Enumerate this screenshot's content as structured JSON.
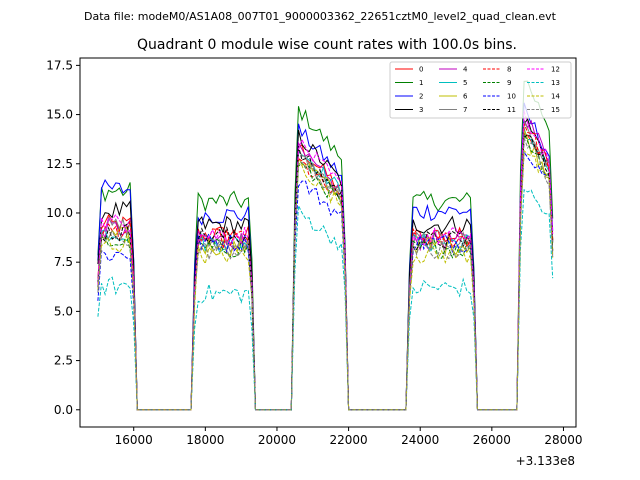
{
  "header": "Data file: modeM0/AS1A08_007T01_9000003362_22651cztM0_level2_quad_clean.evt",
  "chart_data": {
    "type": "line",
    "title": "Quadrant 0 module wise count rates with 100.0s bins.",
    "xlabel": "",
    "ylabel": "",
    "x_offset_label": "+3.133e8",
    "xlim": [
      14500,
      28350
    ],
    "ylim": [
      -0.875,
      17.875
    ],
    "x_ticks": [
      16000,
      18000,
      20000,
      22000,
      24000,
      26000,
      28000
    ],
    "x_tick_labels": [
      "16000",
      "18000",
      "20000",
      "22000",
      "24000",
      "26000",
      "28000"
    ],
    "y_ticks": [
      0.0,
      2.5,
      5.0,
      7.5,
      10.0,
      12.5,
      15.0,
      17.5
    ],
    "y_tick_labels": [
      "0.0",
      "2.5",
      "5.0",
      "7.5",
      "10.0",
      "12.5",
      "15.0",
      "17.5"
    ],
    "segments": [
      [
        15000,
        16000
      ],
      [
        17700,
        19300
      ],
      [
        20500,
        21900
      ],
      [
        23700,
        25500
      ],
      [
        26800,
        27700
      ]
    ],
    "legend_position": "upper-right",
    "series": [
      {
        "name": "0",
        "color": "#ff0000",
        "dash": false,
        "levels": [
          9.4,
          8.9,
          12.8,
          8.8,
          13.9
        ]
      },
      {
        "name": "1",
        "color": "#008000",
        "dash": false,
        "levels": [
          11.1,
          10.6,
          14.6,
          10.6,
          16.3
        ]
      },
      {
        "name": "2",
        "color": "#0000ff",
        "dash": false,
        "levels": [
          11.2,
          9.9,
          13.6,
          10.1,
          14.7
        ]
      },
      {
        "name": "3",
        "color": "#000000",
        "dash": false,
        "levels": [
          10.1,
          9.4,
          13.3,
          9.4,
          14.3
        ]
      },
      {
        "name": "4",
        "color": "#bf00bf",
        "dash": false,
        "levels": [
          9.2,
          8.6,
          12.6,
          8.6,
          14.5
        ]
      },
      {
        "name": "5",
        "color": "#00bfbf",
        "dash": false,
        "levels": [
          9.0,
          8.5,
          12.7,
          8.5,
          13.8
        ]
      },
      {
        "name": "6",
        "color": "#bfbf00",
        "dash": false,
        "levels": [
          8.8,
          8.3,
          12.3,
          8.4,
          13.5
        ]
      },
      {
        "name": "7",
        "color": "#808080",
        "dash": false,
        "levels": [
          9.3,
          8.5,
          12.4,
          8.6,
          14.0
        ]
      },
      {
        "name": "8",
        "color": "#ff0000",
        "dash": true,
        "levels": [
          9.1,
          8.7,
          12.1,
          8.7,
          14.1
        ]
      },
      {
        "name": "9",
        "color": "#008000",
        "dash": true,
        "levels": [
          8.5,
          8.2,
          12.0,
          8.2,
          13.5
        ]
      },
      {
        "name": "10",
        "color": "#0000ff",
        "dash": true,
        "levels": [
          7.9,
          8.5,
          11.2,
          8.5,
          13.0
        ]
      },
      {
        "name": "11",
        "color": "#000000",
        "dash": true,
        "levels": [
          9.0,
          8.8,
          12.5,
          8.6,
          13.7
        ]
      },
      {
        "name": "12",
        "color": "#ff00ff",
        "dash": true,
        "levels": [
          9.5,
          8.9,
          13.0,
          8.8,
          14.4
        ]
      },
      {
        "name": "13",
        "color": "#00bfbf",
        "dash": true,
        "levels": [
          6.3,
          5.9,
          9.6,
          6.2,
          11.0
        ]
      },
      {
        "name": "14",
        "color": "#bfbf00",
        "dash": true,
        "levels": [
          8.4,
          7.9,
          11.9,
          7.9,
          12.9
        ]
      },
      {
        "name": "15",
        "color": "#808080",
        "dash": true,
        "levels": [
          8.7,
          8.1,
          12.2,
          8.1,
          13.3
        ]
      }
    ]
  }
}
